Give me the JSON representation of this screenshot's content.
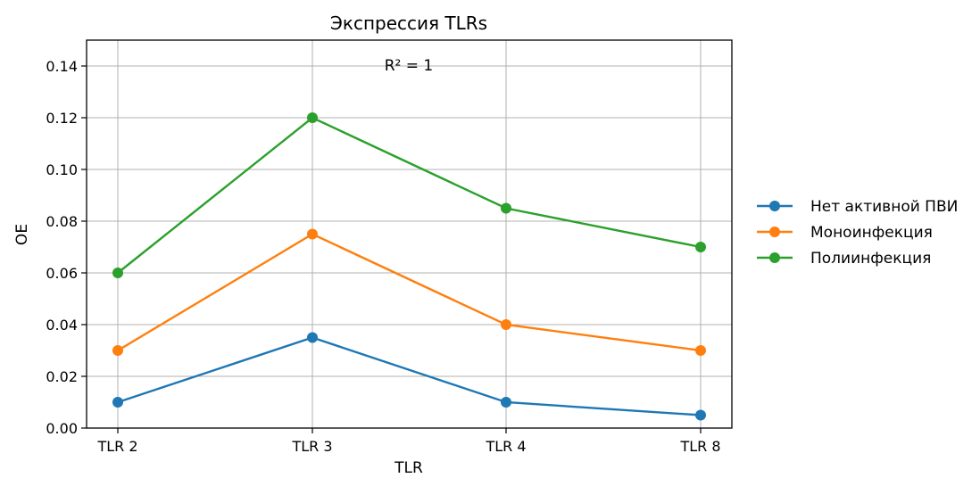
{
  "chart_data": {
    "type": "line",
    "title": "Экспрессия TLRs",
    "xlabel": "TLR",
    "ylabel": "OE",
    "categories": [
      "TLR 2",
      "TLR 3",
      "TLR 4",
      "TLR 8"
    ],
    "ylim": [
      0,
      0.15
    ],
    "yticks": [
      0.0,
      0.02,
      0.04,
      0.06,
      0.08,
      0.1,
      0.12,
      0.14
    ],
    "ytick_labels": [
      "0.00",
      "0.02",
      "0.04",
      "0.06",
      "0.08",
      "0.10",
      "0.12",
      "0.14"
    ],
    "grid": true,
    "legend_position": "outside-right",
    "annotation": "R² = 1",
    "series": [
      {
        "name": "Нет активной ПВИ",
        "color": "#1f77b4",
        "values": [
          0.01,
          0.035,
          0.01,
          0.005
        ]
      },
      {
        "name": "Моноинфекция",
        "color": "#ff7f0e",
        "values": [
          0.03,
          0.075,
          0.04,
          0.03
        ]
      },
      {
        "name": "Полиинфекция",
        "color": "#2ca02c",
        "values": [
          0.06,
          0.12,
          0.085,
          0.07
        ]
      }
    ]
  }
}
